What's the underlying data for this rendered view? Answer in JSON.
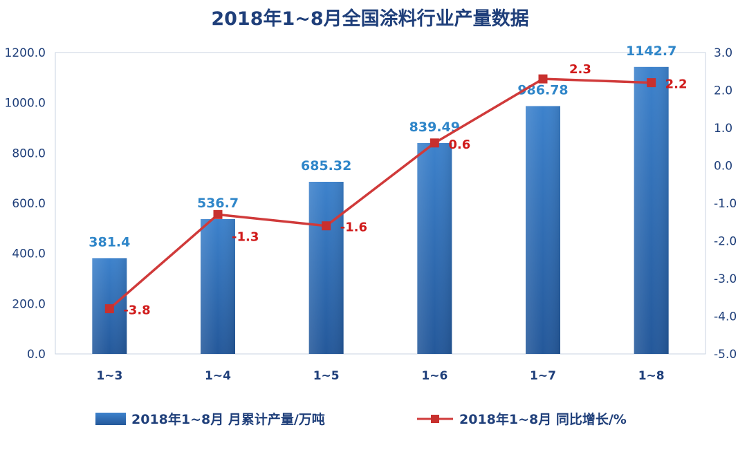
{
  "chart_data": {
    "type": "bar+line",
    "title": "2018年1~8月全国涂料行业产量数据",
    "categories": [
      "1~3",
      "1~4",
      "1~5",
      "1~6",
      "1~7",
      "1~8"
    ],
    "series": [
      {
        "name": "2018年1~8月 月累计产量/万吨",
        "type": "bar",
        "axis": "left",
        "values": [
          381.4,
          536.7,
          685.32,
          839.49,
          986.78,
          1142.7
        ],
        "labels": [
          "381.4",
          "536.7",
          "685.32",
          "839.49",
          "986.78",
          "1142.7"
        ],
        "color": "#2e6db5"
      },
      {
        "name": "2018年1~8月 同比增长/%",
        "type": "line",
        "axis": "right",
        "values": [
          -3.8,
          -1.3,
          -1.6,
          0.6,
          2.3,
          2.2
        ],
        "labels": [
          "-3.8",
          "-1.3",
          "-1.6",
          "0.6",
          "2.3",
          "2.2"
        ],
        "color": "#d03a3a"
      }
    ],
    "y_left": {
      "min": 0,
      "max": 1200,
      "ticks": [
        "0.0",
        "200.0",
        "400.0",
        "600.0",
        "800.0",
        "1000.0",
        "1200.0"
      ]
    },
    "y_right": {
      "min": -5,
      "max": 3,
      "ticks": [
        "-5.0",
        "-4.0",
        "-3.0",
        "-2.0",
        "-1.0",
        "0.0",
        "1.0",
        "2.0",
        "3.0"
      ]
    },
    "legend_position": "bottom"
  }
}
